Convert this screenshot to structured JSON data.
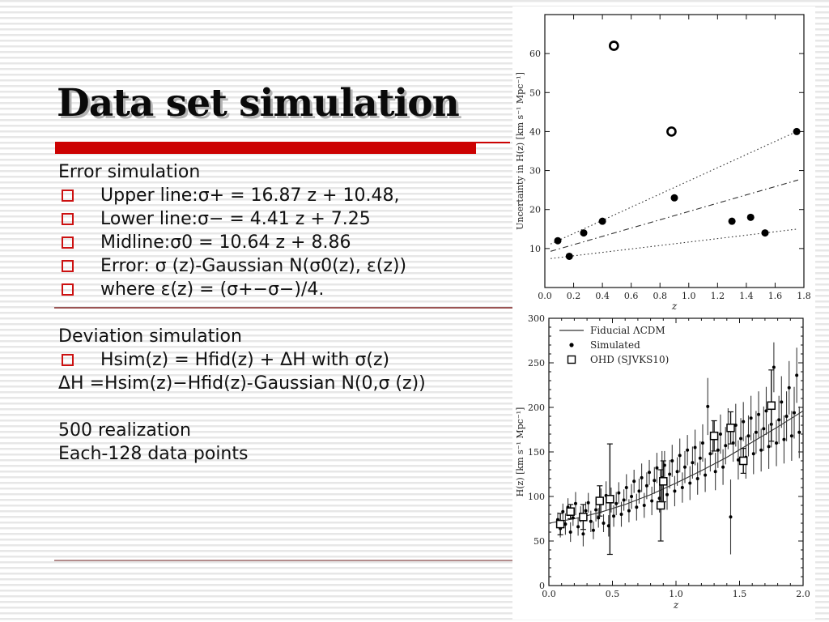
{
  "slide": {
    "title": "Data set simulation",
    "accent_color": "#cc0202",
    "sections": [
      {
        "heading": "Error simulation",
        "bullets": [
          "Upper line:σ+ = 16.87 z + 10.48,",
          "Lower line:σ− = 4.41 z + 7.25",
          "Midline:σ0 = 10.64 z + 8.86",
          "Error: σ (z)-Gaussian N(σ0(z), ε(z))",
          "where ε(z) = (σ+−σ−)/4."
        ]
      },
      {
        "heading": "Deviation simulation",
        "bullets": [
          "Hsim(z) = Hfid(z) + ΔH with σ(z)"
        ],
        "plain": [
          "ΔH =Hsim(z)−Hfid(z)-Gaussian N(0,σ (z))"
        ]
      },
      {
        "heading": "",
        "plain": [
          "500 realization",
          "Each-128 data points"
        ]
      }
    ]
  },
  "chart_data": [
    {
      "type": "scatter",
      "title": "",
      "xlabel": "z",
      "ylabel": "Uncertainty in H(z) [km s⁻¹ Mpc⁻¹]",
      "xlim": [
        0,
        1.8
      ],
      "ylim": [
        0,
        70
      ],
      "xticks": [
        0.0,
        0.2,
        0.4,
        0.6,
        0.8,
        1.0,
        1.2,
        1.4,
        1.6,
        1.8
      ],
      "yticks": [
        10,
        20,
        30,
        40,
        50,
        60
      ],
      "grid": false,
      "points_filled": [
        [
          0.09,
          12
        ],
        [
          0.17,
          8
        ],
        [
          0.27,
          14
        ],
        [
          0.4,
          17
        ],
        [
          0.9,
          23
        ],
        [
          1.3,
          17
        ],
        [
          1.43,
          18
        ],
        [
          1.53,
          14
        ],
        [
          1.75,
          40
        ]
      ],
      "points_open": [
        [
          0.48,
          62
        ],
        [
          0.88,
          40
        ]
      ],
      "lines": [
        {
          "name": "sigma_plus",
          "slope": 16.87,
          "intercept": 10.48,
          "dash": "dotted"
        },
        {
          "name": "sigma_mid",
          "slope": 10.64,
          "intercept": 8.86,
          "dash": "dashdot"
        },
        {
          "name": "sigma_minus",
          "slope": 4.41,
          "intercept": 7.25,
          "dash": "dotted"
        }
      ]
    },
    {
      "type": "scatter",
      "title": "",
      "xlabel": "z",
      "ylabel": "H(z) [km s⁻¹ Mpc⁻¹]",
      "xlim": [
        0,
        2.0
      ],
      "ylim": [
        0,
        300
      ],
      "xticks": [
        0.0,
        0.5,
        1.0,
        1.5,
        2.0
      ],
      "yticks": [
        0,
        50,
        100,
        150,
        200,
        250,
        300
      ],
      "grid": false,
      "legend": [
        "Fiducial ΛCDM",
        "Simulated",
        "OHD (SJVKS10)"
      ],
      "legend_position": "upper-left",
      "fiducial_line": [
        [
          0,
          70
        ],
        [
          0.2,
          75
        ],
        [
          0.4,
          82
        ],
        [
          0.6,
          91
        ],
        [
          0.8,
          102
        ],
        [
          1.0,
          115
        ],
        [
          1.2,
          129
        ],
        [
          1.4,
          144
        ],
        [
          1.6,
          161
        ],
        [
          1.8,
          178
        ],
        [
          2.0,
          196
        ]
      ],
      "ohd": [
        [
          0.09,
          69,
          12
        ],
        [
          0.17,
          83,
          8
        ],
        [
          0.27,
          77,
          14
        ],
        [
          0.4,
          95,
          17
        ],
        [
          0.48,
          97,
          62
        ],
        [
          0.88,
          90,
          40
        ],
        [
          0.9,
          117,
          23
        ],
        [
          1.3,
          168,
          17
        ],
        [
          1.43,
          177,
          18
        ],
        [
          1.53,
          140,
          14
        ],
        [
          1.75,
          202,
          40
        ]
      ],
      "simulated": [
        [
          0.07,
          74,
          8
        ],
        [
          0.09,
          64,
          10
        ],
        [
          0.11,
          83,
          9
        ],
        [
          0.13,
          69,
          12
        ],
        [
          0.15,
          88,
          10
        ],
        [
          0.17,
          60,
          11
        ],
        [
          0.19,
          76,
          9
        ],
        [
          0.21,
          92,
          13
        ],
        [
          0.23,
          66,
          10
        ],
        [
          0.25,
          80,
          9
        ],
        [
          0.27,
          58,
          14
        ],
        [
          0.29,
          84,
          10
        ],
        [
          0.31,
          93,
          11
        ],
        [
          0.33,
          72,
          12
        ],
        [
          0.35,
          62,
          10
        ],
        [
          0.37,
          85,
          13
        ],
        [
          0.39,
          76,
          11
        ],
        [
          0.41,
          95,
          14
        ],
        [
          0.43,
          70,
          10
        ],
        [
          0.45,
          101,
          16
        ],
        [
          0.47,
          67,
          12
        ],
        [
          0.49,
          96,
          14
        ],
        [
          0.51,
          78,
          12
        ],
        [
          0.53,
          92,
          13
        ],
        [
          0.55,
          104,
          12
        ],
        [
          0.57,
          80,
          14
        ],
        [
          0.59,
          96,
          12
        ],
        [
          0.61,
          110,
          15
        ],
        [
          0.63,
          84,
          13
        ],
        [
          0.65,
          100,
          14
        ],
        [
          0.67,
          117,
          13
        ],
        [
          0.69,
          88,
          15
        ],
        [
          0.71,
          106,
          14
        ],
        [
          0.73,
          121,
          16
        ],
        [
          0.75,
          90,
          14
        ],
        [
          0.77,
          112,
          15
        ],
        [
          0.79,
          127,
          14
        ],
        [
          0.81,
          95,
          16
        ],
        [
          0.83,
          118,
          15
        ],
        [
          0.85,
          132,
          17
        ],
        [
          0.87,
          98,
          16
        ],
        [
          0.89,
          121,
          30
        ],
        [
          0.91,
          135,
          16
        ],
        [
          0.93,
          102,
          17
        ],
        [
          0.95,
          125,
          16
        ],
        [
          0.97,
          140,
          18
        ],
        [
          0.99,
          106,
          17
        ],
        [
          1.01,
          128,
          16
        ],
        [
          1.03,
          146,
          19
        ],
        [
          1.05,
          110,
          17
        ],
        [
          1.07,
          133,
          18
        ],
        [
          1.09,
          152,
          17
        ],
        [
          1.11,
          115,
          19
        ],
        [
          1.13,
          138,
          18
        ],
        [
          1.15,
          155,
          20
        ],
        [
          1.17,
          120,
          18
        ],
        [
          1.19,
          143,
          19
        ],
        [
          1.21,
          160,
          21
        ],
        [
          1.23,
          124,
          19
        ],
        [
          1.25,
          201,
          32
        ],
        [
          1.27,
          148,
          20
        ],
        [
          1.29,
          166,
          19
        ],
        [
          1.31,
          128,
          21
        ],
        [
          1.33,
          152,
          20
        ],
        [
          1.35,
          170,
          22
        ],
        [
          1.37,
          133,
          20
        ],
        [
          1.39,
          157,
          21
        ],
        [
          1.41,
          176,
          23
        ],
        [
          1.43,
          77,
          42
        ],
        [
          1.45,
          160,
          21
        ],
        [
          1.47,
          180,
          24
        ],
        [
          1.49,
          141,
          22
        ],
        [
          1.51,
          165,
          23
        ],
        [
          1.53,
          184,
          22
        ],
        [
          1.55,
          144,
          24
        ],
        [
          1.57,
          168,
          23
        ],
        [
          1.59,
          188,
          25
        ],
        [
          1.61,
          148,
          23
        ],
        [
          1.63,
          172,
          24
        ],
        [
          1.65,
          192,
          26
        ],
        [
          1.67,
          152,
          24
        ],
        [
          1.69,
          176,
          25
        ],
        [
          1.71,
          196,
          27
        ],
        [
          1.73,
          156,
          25
        ],
        [
          1.75,
          181,
          26
        ],
        [
          1.77,
          245,
          28
        ],
        [
          1.79,
          160,
          26
        ],
        [
          1.81,
          186,
          27
        ],
        [
          1.83,
          206,
          29
        ],
        [
          1.85,
          164,
          27
        ],
        [
          1.87,
          190,
          28
        ],
        [
          1.89,
          222,
          30
        ],
        [
          1.91,
          168,
          28
        ],
        [
          1.93,
          194,
          29
        ],
        [
          1.95,
          236,
          31
        ],
        [
          1.97,
          172,
          29
        ]
      ]
    }
  ]
}
